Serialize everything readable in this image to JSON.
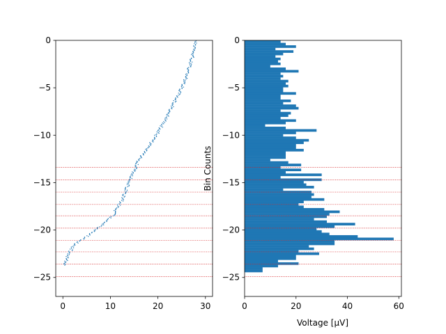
{
  "chart_data": [
    {
      "type": "scatter",
      "xlim": [
        -1.5,
        31.5
      ],
      "ylim": [
        -27,
        0
      ],
      "xticks": [
        0,
        10,
        20,
        30
      ],
      "yticks": [
        0,
        -5,
        -10,
        -15,
        -20,
        -25
      ],
      "xlabel": "",
      "ylabel": "",
      "grid": false,
      "series": [
        {
          "marker": "small dots",
          "color": "#1f77b4",
          "anchors": [
            [
              0.4,
              -23.7
            ],
            [
              1.0,
              -22.8
            ],
            [
              2.0,
              -21.8
            ],
            [
              3.0,
              -21.3
            ],
            [
              4.5,
              -20.9
            ],
            [
              6.0,
              -20.3
            ],
            [
              7.5,
              -19.8
            ],
            [
              9.0,
              -19.1
            ],
            [
              10.5,
              -18.5
            ],
            [
              11.5,
              -17.6
            ],
            [
              12.5,
              -16.8
            ],
            [
              13.3,
              -15.8
            ],
            [
              14.2,
              -14.7
            ],
            [
              15.0,
              -13.8
            ],
            [
              16.0,
              -12.6
            ],
            [
              17.5,
              -11.5
            ],
            [
              19.0,
              -10.5
            ],
            [
              20.5,
              -9.3
            ],
            [
              22.0,
              -8.0
            ],
            [
              23.5,
              -6.5
            ],
            [
              25.0,
              -5.0
            ],
            [
              26.0,
              -3.8
            ],
            [
              26.8,
              -2.5
            ],
            [
              27.5,
              -1.3
            ],
            [
              28.2,
              0.0
            ]
          ]
        }
      ]
    },
    {
      "type": "bar",
      "orientation": "horizontal",
      "xlim": [
        0,
        61
      ],
      "ylim": [
        -27,
        0
      ],
      "xticks": [
        0,
        20,
        40,
        60
      ],
      "yticks": [
        0,
        -5,
        -10,
        -15,
        -20,
        -25
      ],
      "xlabel": "Voltage [µV]",
      "ylabel": "Bin Counts",
      "bin_edges_start": 0,
      "bin_width": -0.26,
      "values": [
        14,
        16,
        20,
        12,
        19,
        15,
        12,
        14,
        13,
        14,
        10,
        16,
        21,
        14,
        15,
        14,
        17,
        16,
        17,
        15,
        15,
        20,
        14,
        14,
        18,
        15,
        20,
        21,
        14,
        18,
        17,
        14,
        20,
        16,
        8,
        16,
        28,
        20,
        15,
        20,
        25,
        23,
        20,
        20,
        23,
        16,
        16,
        16,
        10,
        17,
        22,
        14,
        22,
        16,
        30,
        14,
        30,
        23,
        24,
        27,
        15,
        26,
        27,
        26,
        31,
        23,
        21,
        23,
        31,
        37,
        33,
        32,
        27,
        32,
        43,
        35,
        28,
        30,
        33,
        44,
        58,
        35,
        35,
        25,
        27,
        21,
        29,
        20,
        20,
        13,
        21,
        13,
        7,
        7
      ],
      "color": "#1f77b4"
    }
  ],
  "reference_lines": {
    "y_values": [
      -13.4,
      -14.7,
      -16.0,
      -17.3,
      -18.5,
      -19.8,
      -21.1,
      -22.3,
      -23.6,
      -24.9
    ],
    "color": "#d62728",
    "style": "dotted",
    "span": "both panels"
  }
}
